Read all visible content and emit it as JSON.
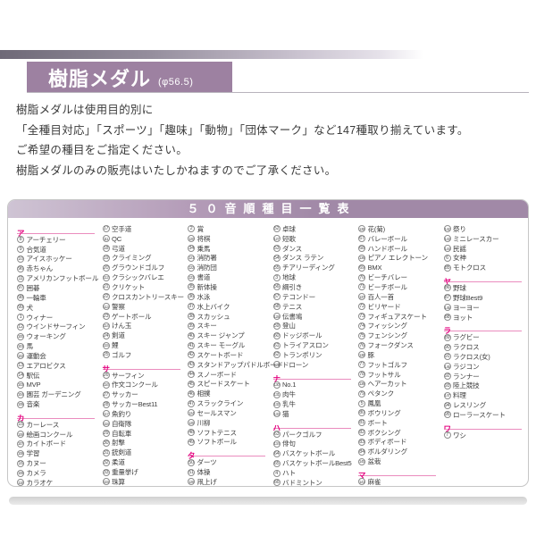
{
  "page": {
    "title": "樹脂メダル",
    "size_label": "(φ56.5)",
    "intro": [
      "樹脂メダルは使用目的別に",
      "「全種目対応」「スポーツ」「趣味」「動物」「団体マーク」など147種取り揃えています。",
      "ご希望の種目をご指定ください。",
      "樹脂メダルのみの販売はいたしかねますのでご了承ください。"
    ]
  },
  "colors": {
    "title_bar": "#9d81a1",
    "table_header_gradient_left": "#cfc4d4",
    "table_header_gradient_right": "#a189a7",
    "kana_accent": "#e4007f",
    "kana_underline": "#ea8cbe",
    "text": "#3e3e3e"
  },
  "table": {
    "title": "５０音順種目一覧表",
    "columns": [
      [
        {
          "s": "ア"
        },
        {
          "n": 8,
          "t": "アーチェリー"
        },
        {
          "n": 9,
          "t": "合気道"
        },
        {
          "n": 10,
          "t": "アイスホッケー"
        },
        {
          "n": 96,
          "t": "赤ちゃん"
        },
        {
          "n": 11,
          "t": "アメリカンフットボール"
        },
        {
          "n": 97,
          "t": "囲碁"
        },
        {
          "n": 98,
          "t": "一輪車"
        },
        {
          "n": 99,
          "t": "犬"
        },
        {
          "n": 1,
          "t": "ウィナー"
        },
        {
          "n": 12,
          "t": "ウインドサーフィン"
        },
        {
          "n": 100,
          "t": "ウォーキング"
        },
        {
          "n": 101,
          "t": "馬"
        },
        {
          "n": 102,
          "t": "運動会"
        },
        {
          "n": 13,
          "t": "エアロビクス"
        },
        {
          "n": 14,
          "t": "駅伝"
        },
        {
          "n": 103,
          "t": "MVP"
        },
        {
          "n": 104,
          "t": "園芸 ガーデニング"
        },
        {
          "n": 105,
          "t": "音楽"
        },
        {
          "s": "カ"
        },
        {
          "n": 15,
          "t": "カーレース"
        },
        {
          "n": 106,
          "t": "絵画コンクール"
        },
        {
          "n": 107,
          "t": "カイトボード"
        },
        {
          "n": 108,
          "t": "学習"
        },
        {
          "n": 16,
          "t": "カヌー"
        },
        {
          "n": 109,
          "t": "カメラ"
        },
        {
          "n": 110,
          "t": "カラオケ"
        }
      ],
      [
        {
          "n": 17,
          "t": "空手道"
        },
        {
          "n": 111,
          "t": "QC"
        },
        {
          "n": 18,
          "t": "弓道"
        },
        {
          "n": 19,
          "t": "クライミング"
        },
        {
          "n": 20,
          "t": "グラウンドゴルフ"
        },
        {
          "n": 112,
          "t": "クラシックバレエ"
        },
        {
          "n": 21,
          "t": "クリケット"
        },
        {
          "n": 22,
          "t": "クロスカントリースキー"
        },
        {
          "n": 113,
          "t": "警察"
        },
        {
          "n": 23,
          "t": "ゲートボール"
        },
        {
          "n": 114,
          "t": "けん玉"
        },
        {
          "n": 24,
          "t": "剣道"
        },
        {
          "n": 115,
          "t": "鯉"
        },
        {
          "n": 25,
          "t": "ゴルフ"
        },
        {
          "s": "サ"
        },
        {
          "n": 26,
          "t": "サーフィン"
        },
        {
          "n": 116,
          "t": "作文コンクール"
        },
        {
          "n": 27,
          "t": "サッカー"
        },
        {
          "n": 28,
          "t": "サッカーBest11"
        },
        {
          "n": 117,
          "t": "魚釣り"
        },
        {
          "n": 118,
          "t": "自衛隊"
        },
        {
          "n": 29,
          "t": "自転車"
        },
        {
          "n": 30,
          "t": "射撃"
        },
        {
          "n": 31,
          "t": "銃剣道"
        },
        {
          "n": 32,
          "t": "柔道"
        },
        {
          "n": 33,
          "t": "重量挙げ"
        },
        {
          "n": 119,
          "t": "珠算"
        }
      ],
      [
        {
          "n": 2,
          "t": "賞"
        },
        {
          "n": 120,
          "t": "将棋"
        },
        {
          "n": 34,
          "t": "乗馬"
        },
        {
          "n": 121,
          "t": "消防署"
        },
        {
          "n": 122,
          "t": "消防団"
        },
        {
          "n": 123,
          "t": "書道"
        },
        {
          "n": 35,
          "t": "新体操"
        },
        {
          "n": 36,
          "t": "水泳"
        },
        {
          "n": 37,
          "t": "水上バイク"
        },
        {
          "n": 38,
          "t": "スカッシュ"
        },
        {
          "n": 39,
          "t": "スキー"
        },
        {
          "n": 40,
          "t": "スキー ジャンプ"
        },
        {
          "n": 41,
          "t": "スキー モーグル"
        },
        {
          "n": 42,
          "t": "スケートボード"
        },
        {
          "n": 43,
          "t": "スタンドアップパドルボード"
        },
        {
          "n": 44,
          "t": "スノーボード"
        },
        {
          "n": 45,
          "t": "スピードスケート"
        },
        {
          "n": 46,
          "t": "相撲"
        },
        {
          "n": 47,
          "t": "スラックライン"
        },
        {
          "n": 124,
          "t": "セールスマン"
        },
        {
          "n": 125,
          "t": "川柳"
        },
        {
          "n": 48,
          "t": "ソフトテニス"
        },
        {
          "n": 49,
          "t": "ソフトボール"
        },
        {
          "s": "タ"
        },
        {
          "n": 50,
          "t": "ダーツ"
        },
        {
          "n": 51,
          "t": "体操"
        },
        {
          "n": 126,
          "t": "凧上げ"
        }
      ],
      [
        {
          "n": 52,
          "t": "卓球"
        },
        {
          "n": 127,
          "t": "短歌"
        },
        {
          "n": 53,
          "t": "ダンス"
        },
        {
          "n": 54,
          "t": "ダンス ラテン"
        },
        {
          "n": 55,
          "t": "チアリーディング"
        },
        {
          "n": 3,
          "t": "地球"
        },
        {
          "n": 56,
          "t": "綱引き"
        },
        {
          "n": 57,
          "t": "テコンドー"
        },
        {
          "n": 58,
          "t": "テニス"
        },
        {
          "n": 128,
          "t": "伝書鳩"
        },
        {
          "n": 59,
          "t": "登山"
        },
        {
          "n": 60,
          "t": "ドッジボール"
        },
        {
          "n": 61,
          "t": "トライアスロン"
        },
        {
          "n": 62,
          "t": "トランポリン"
        },
        {
          "n": 129,
          "t": "ドローン"
        },
        {
          "s": "ナ"
        },
        {
          "n": 130,
          "t": "No.1"
        },
        {
          "n": 131,
          "t": "肉牛"
        },
        {
          "n": 132,
          "t": "乳牛"
        },
        {
          "n": 133,
          "t": "猫"
        },
        {
          "s": "ハ"
        },
        {
          "n": 63,
          "t": "パークゴルフ"
        },
        {
          "n": 134,
          "t": "俳句"
        },
        {
          "n": 64,
          "t": "バスケットボール"
        },
        {
          "n": 65,
          "t": "バスケットボールBest5"
        },
        {
          "n": 4,
          "t": "ハト"
        },
        {
          "n": 66,
          "t": "バドミントン"
        }
      ],
      [
        {
          "n": 135,
          "t": "花(菊)"
        },
        {
          "n": 67,
          "t": "バレーボール"
        },
        {
          "n": 68,
          "t": "ハンドボール"
        },
        {
          "n": 136,
          "t": "ピアノ エレクトーン"
        },
        {
          "n": 69,
          "t": "BMX"
        },
        {
          "n": 70,
          "t": "ビーチバレー"
        },
        {
          "n": 71,
          "t": "ビーチボール"
        },
        {
          "n": 137,
          "t": "百人一首"
        },
        {
          "n": 72,
          "t": "ビリヤード"
        },
        {
          "n": 73,
          "t": "フィギュアスケート"
        },
        {
          "n": 74,
          "t": "フィッシング"
        },
        {
          "n": 75,
          "t": "フェンシング"
        },
        {
          "n": 76,
          "t": "フォークダンス"
        },
        {
          "n": 138,
          "t": "豚"
        },
        {
          "n": 77,
          "t": "フットゴルフ"
        },
        {
          "n": 78,
          "t": "フットサル"
        },
        {
          "n": 139,
          "t": "ヘアーカット"
        },
        {
          "n": 79,
          "t": "ペタンク"
        },
        {
          "n": 5,
          "t": "鳳凰"
        },
        {
          "n": 80,
          "t": "ボウリング"
        },
        {
          "n": 81,
          "t": "ボート"
        },
        {
          "n": 82,
          "t": "ボクシング"
        },
        {
          "n": 83,
          "t": "ボディボード"
        },
        {
          "n": 84,
          "t": "ボルダリング"
        },
        {
          "n": 140,
          "t": "盆栽"
        },
        {
          "s": "マ"
        },
        {
          "n": 141,
          "t": "麻雀"
        }
      ],
      [
        {
          "n": 142,
          "t": "祭り"
        },
        {
          "n": 143,
          "t": "ミニレースカー"
        },
        {
          "n": 144,
          "t": "民謡"
        },
        {
          "n": 6,
          "t": "女神"
        },
        {
          "n": 85,
          "t": "モトクロス"
        },
        {
          "s": "ヤ"
        },
        {
          "n": 86,
          "t": "野球"
        },
        {
          "n": 87,
          "t": "野球Best9"
        },
        {
          "n": 145,
          "t": "ヨーヨー"
        },
        {
          "n": 88,
          "t": "ヨット"
        },
        {
          "s": "ラ"
        },
        {
          "n": 89,
          "t": "ラグビー"
        },
        {
          "n": 90,
          "t": "ラクロス"
        },
        {
          "n": 91,
          "t": "ラクロス(女)"
        },
        {
          "n": 146,
          "t": "ラジコン"
        },
        {
          "n": 92,
          "t": "ランナー"
        },
        {
          "n": 93,
          "t": "陸上競技"
        },
        {
          "n": 147,
          "t": "料理"
        },
        {
          "n": 94,
          "t": "レスリング"
        },
        {
          "n": 95,
          "t": "ローラースケート"
        },
        {
          "s": "ワ"
        },
        {
          "n": 7,
          "t": "ワシ"
        }
      ]
    ]
  }
}
